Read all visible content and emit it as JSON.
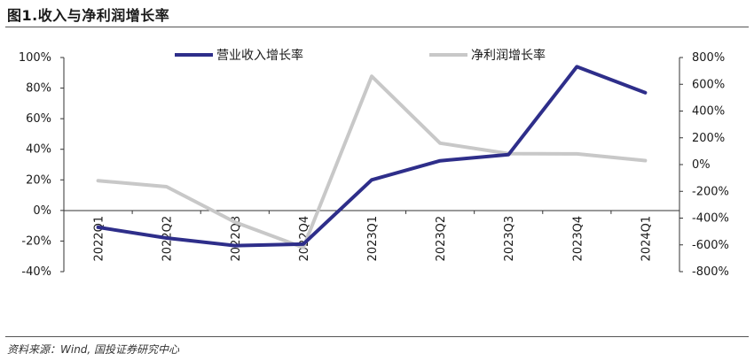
{
  "figure": {
    "title": "图1.收入与净利润增长率",
    "source": "资料来源：Wind, 国投证券研究中心"
  },
  "colors": {
    "revenue": "#2e2e8a",
    "profit": "#c8c8c8",
    "axis": "#333333"
  },
  "chart_data": {
    "type": "line",
    "categories": [
      "2022Q1",
      "2022Q2",
      "2022Q3",
      "2022Q4",
      "2023Q1",
      "2023Q2",
      "2023Q3",
      "2023Q4",
      "2024Q1"
    ],
    "series": [
      {
        "name": "营业收入增长率",
        "axis": "left",
        "values": [
          -11,
          -18,
          -23,
          -22,
          20,
          32.5,
          36.5,
          94,
          77
        ]
      },
      {
        "name": "净利润增长率",
        "axis": "right",
        "values": [
          -120,
          -165,
          -430,
          -620,
          660,
          160,
          82,
          80,
          30
        ]
      }
    ],
    "y_left": {
      "min": -40,
      "max": 100,
      "ticks": [
        "-40%",
        "-20%",
        "0%",
        "20%",
        "40%",
        "60%",
        "80%",
        "100%"
      ]
    },
    "y_right": {
      "min": -800,
      "max": 800,
      "ticks": [
        "-800%",
        "-600%",
        "-400%",
        "-200%",
        "0%",
        "200%",
        "400%",
        "600%",
        "800%"
      ]
    },
    "legend_position": "top",
    "grid": false
  }
}
